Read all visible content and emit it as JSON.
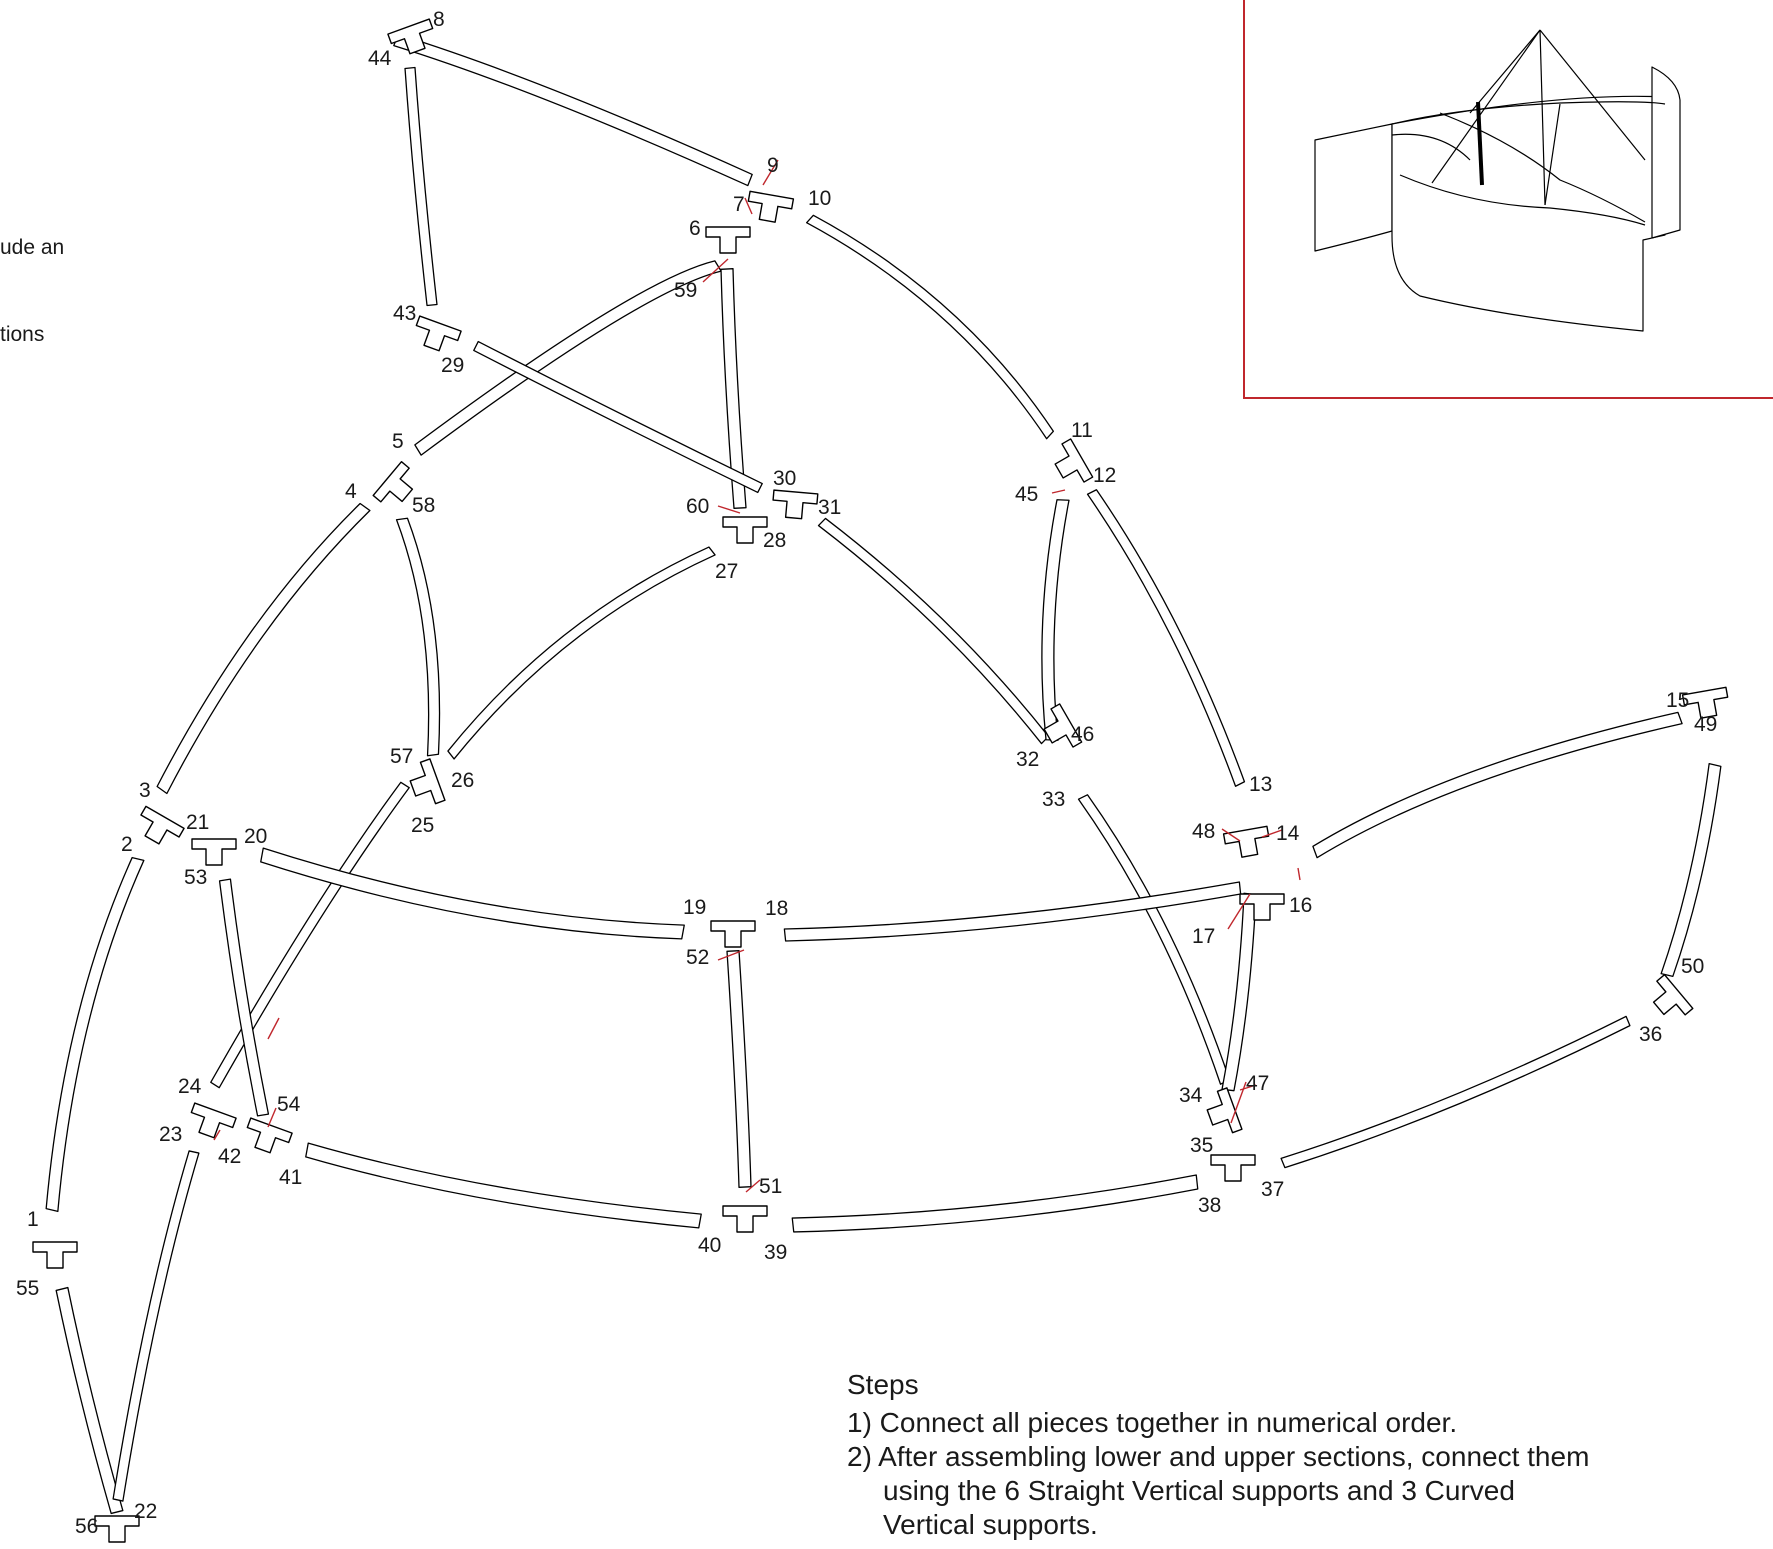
{
  "diagram": {
    "part_labels": [
      "1",
      "2",
      "3",
      "4",
      "5",
      "6",
      "7",
      "8",
      "9",
      "10",
      "11",
      "12",
      "13",
      "14",
      "15",
      "16",
      "17",
      "18",
      "19",
      "20",
      "21",
      "22",
      "23",
      "24",
      "25",
      "26",
      "27",
      "28",
      "29",
      "30",
      "31",
      "32",
      "33",
      "34",
      "35",
      "36",
      "37",
      "38",
      "39",
      "40",
      "41",
      "42",
      "43",
      "44",
      "45",
      "46",
      "47",
      "48",
      "49",
      "50",
      "51",
      "52",
      "53",
      "54",
      "55",
      "56",
      "57",
      "58",
      "59",
      "60"
    ]
  },
  "side_note": {
    "lines": [
      "ude an",
      "tions"
    ]
  },
  "steps": {
    "title": "Steps",
    "items": [
      "1) Connect all pieces together in numerical order.",
      "2) After assembling lower and upper sections, connect them using the 6 Straight Vertical supports and 3 Curved Vertical supports."
    ]
  },
  "colors": {
    "callout_leader": "#c0272d",
    "inset_border": "#c0272d",
    "linework": "#000000"
  }
}
